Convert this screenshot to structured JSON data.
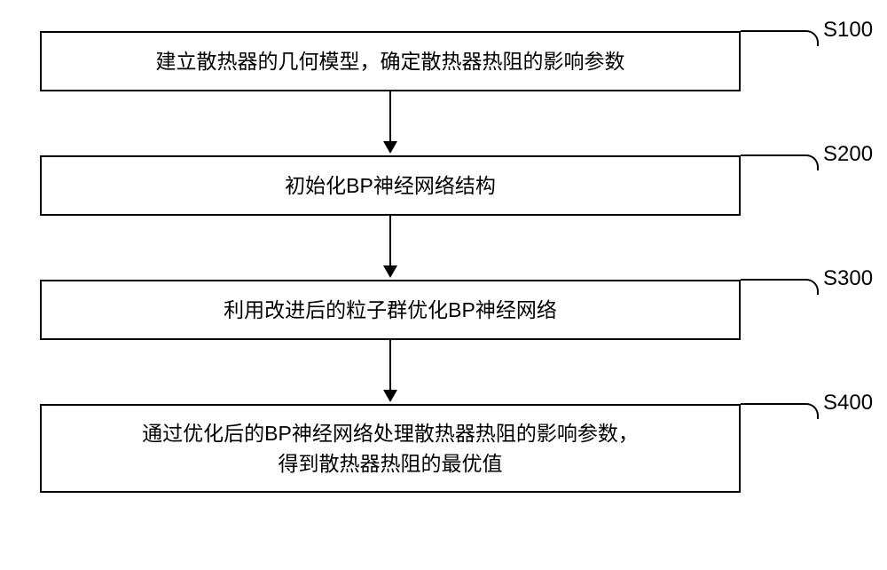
{
  "flowchart": {
    "type": "flowchart",
    "background_color": "#ffffff",
    "box_border_color": "#000000",
    "box_border_width": 2,
    "text_color": "#000000",
    "text_fontsize": 23,
    "label_fontsize": 24,
    "arrow_color": "#000000",
    "steps": [
      {
        "id": "S100",
        "text": "建立散热器的几何模型，确定散热器热阻的影响参数"
      },
      {
        "id": "S200",
        "text": "初始化BP神经网络结构"
      },
      {
        "id": "S300",
        "text": "利用改进后的粒子群优化BP神经网络"
      },
      {
        "id": "S400",
        "text": "通过优化后的BP神经网络处理散热器热阻的影响参数，\n得到散热器热阻的最优值"
      }
    ],
    "edges": [
      {
        "from": "S100",
        "to": "S200"
      },
      {
        "from": "S200",
        "to": "S300"
      },
      {
        "from": "S300",
        "to": "S400"
      }
    ]
  }
}
